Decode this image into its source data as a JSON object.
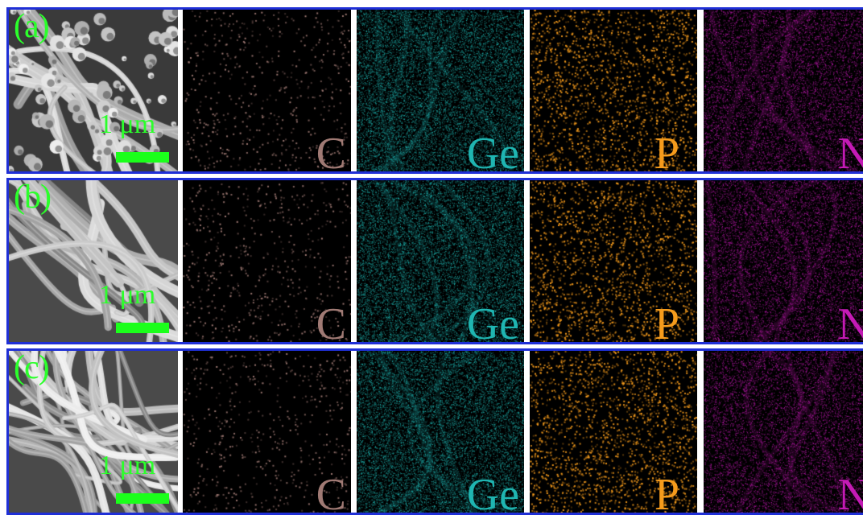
{
  "rows": [
    {
      "panel_label": "(a)",
      "scale_label": "1 μm",
      "maps": [
        {
          "element": "C",
          "color": "#a07a74"
        },
        {
          "element": "Ge",
          "color": "#1fb5b1"
        },
        {
          "element": "P",
          "color": "#f59b1c"
        },
        {
          "element": "N",
          "color": "#c41ab5"
        }
      ]
    },
    {
      "panel_label": "(b)",
      "scale_label": "1 μm",
      "maps": [
        {
          "element": "C",
          "color": "#a07a74"
        },
        {
          "element": "Ge",
          "color": "#1fb5b1"
        },
        {
          "element": "P",
          "color": "#f59b1c"
        },
        {
          "element": "N",
          "color": "#c41ab5"
        }
      ]
    },
    {
      "panel_label": "(c)",
      "scale_label": "1 μm",
      "maps": [
        {
          "element": "C",
          "color": "#a07a74"
        },
        {
          "element": "Ge",
          "color": "#1fb5b1"
        },
        {
          "element": "P",
          "color": "#f59b1c"
        },
        {
          "element": "N",
          "color": "#c41ab5"
        }
      ]
    }
  ]
}
